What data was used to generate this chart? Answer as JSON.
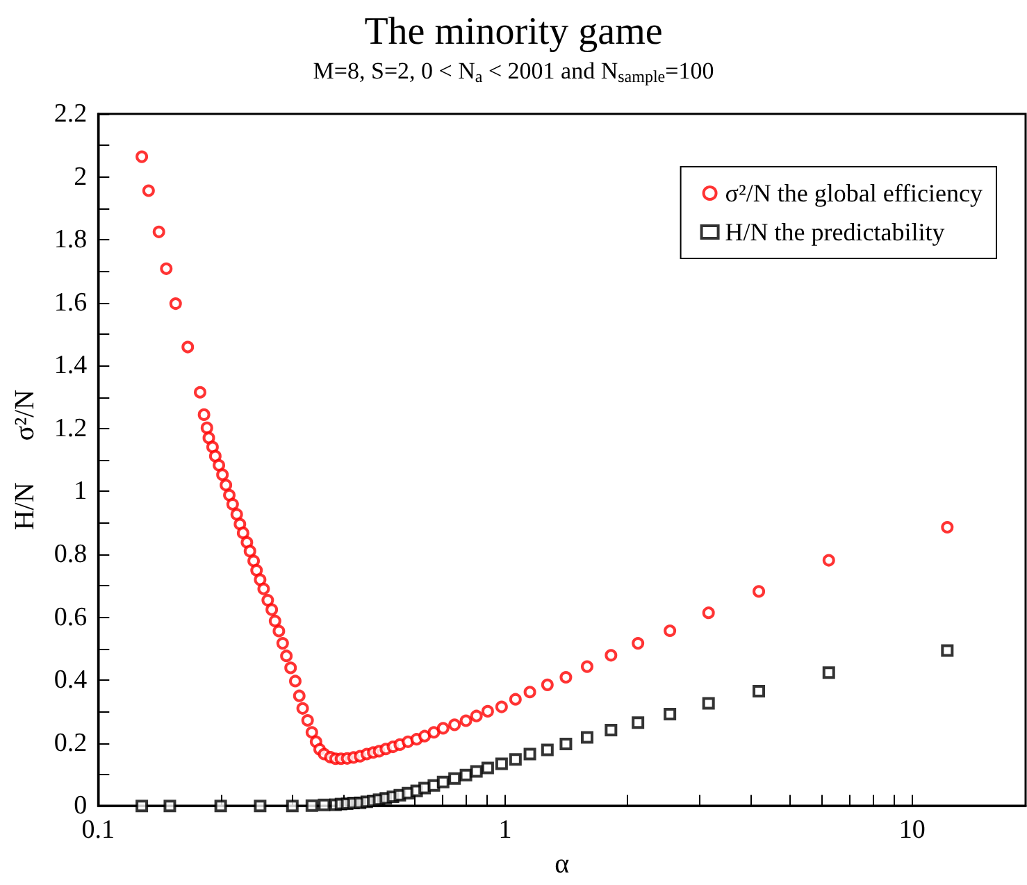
{
  "chart_data": {
    "type": "scatter",
    "title": "The minority game",
    "subtitle": "M=8, S=2, 0 < N$_{a}$ < 2001 and N$_{sample}$=100",
    "xlabel": "α",
    "ylabel": "H/N      σ²/N",
    "log": "x",
    "xlim": [
      0.1,
      19
    ],
    "xticks": [
      0.1,
      {
        "value": 0.2,
        "label": null
      },
      {
        "value": 0.3,
        "label": null
      },
      {
        "value": 0.4,
        "label": null
      },
      {
        "value": 0.5,
        "label": null
      },
      {
        "value": 0.6,
        "label": null
      },
      {
        "value": 0.7,
        "label": null
      },
      {
        "value": 0.8,
        "label": null
      },
      {
        "value": 0.9,
        "label": null
      },
      1,
      {
        "value": 2,
        "label": null
      },
      {
        "value": 3,
        "label": null
      },
      {
        "value": 4,
        "label": null
      },
      {
        "value": 5,
        "label": null
      },
      {
        "value": 6,
        "label": null
      },
      {
        "value": 7,
        "label": null
      },
      {
        "value": 8,
        "label": null
      },
      {
        "value": 9,
        "label": null
      },
      10
    ],
    "ylim": [
      0,
      2.2
    ],
    "yticks": [
      0,
      {
        "value": 0.1,
        "label": null
      },
      0.2,
      {
        "value": 0.3,
        "label": null
      },
      0.4,
      {
        "value": 0.5,
        "label": null
      },
      0.6,
      {
        "value": 0.7,
        "label": null
      },
      0.8,
      {
        "value": 0.9,
        "label": null
      },
      1,
      {
        "value": 1.1,
        "label": null
      },
      1.2,
      {
        "value": 1.3,
        "label": null
      },
      1.4,
      {
        "value": 1.5,
        "label": null
      },
      1.6,
      {
        "value": 1.7,
        "label": null
      },
      1.8,
      {
        "value": 1.9,
        "label": null
      },
      2,
      {
        "value": 2.1,
        "label": null
      },
      2.2
    ],
    "grid": false,
    "legend": "top right",
    "series": [
      {
        "name": "σ²/N the global efficiency",
        "color": "#ff0000",
        "marker": "circle",
        "x": [
          0.128,
          0.133,
          0.141,
          0.147,
          0.155,
          0.166,
          0.178,
          0.182,
          0.185,
          0.187,
          0.191,
          0.194,
          0.198,
          0.202,
          0.206,
          0.21,
          0.214,
          0.219,
          0.223,
          0.227,
          0.232,
          0.236,
          0.241,
          0.245,
          0.25,
          0.255,
          0.261,
          0.267,
          0.272,
          0.278,
          0.284,
          0.29,
          0.297,
          0.305,
          0.312,
          0.318,
          0.327,
          0.335,
          0.343,
          0.35,
          0.359,
          0.372,
          0.383,
          0.395,
          0.409,
          0.424,
          0.44,
          0.457,
          0.474,
          0.49,
          0.509,
          0.53,
          0.551,
          0.577,
          0.606,
          0.634,
          0.668,
          0.704,
          0.751,
          0.801,
          0.85,
          0.906,
          0.98,
          1.06,
          1.15,
          1.27,
          1.41,
          1.59,
          1.82,
          2.12,
          2.54,
          3.16,
          4.2,
          6.24,
          12.2
        ],
        "values": [
          2.064,
          1.956,
          1.825,
          1.708,
          1.597,
          1.459,
          1.315,
          1.244,
          1.202,
          1.17,
          1.141,
          1.112,
          1.083,
          1.053,
          1.02,
          0.988,
          0.959,
          0.927,
          0.896,
          0.868,
          0.838,
          0.81,
          0.779,
          0.749,
          0.719,
          0.69,
          0.654,
          0.624,
          0.588,
          0.556,
          0.517,
          0.477,
          0.439,
          0.397,
          0.35,
          0.31,
          0.272,
          0.234,
          0.204,
          0.18,
          0.165,
          0.155,
          0.15,
          0.15,
          0.151,
          0.154,
          0.158,
          0.165,
          0.17,
          0.174,
          0.181,
          0.188,
          0.195,
          0.204,
          0.212,
          0.222,
          0.234,
          0.247,
          0.258,
          0.271,
          0.286,
          0.301,
          0.315,
          0.339,
          0.362,
          0.385,
          0.409,
          0.443,
          0.479,
          0.517,
          0.557,
          0.614,
          0.682,
          0.781,
          0.886
        ]
      },
      {
        "name": "H/N the predictability",
        "color": "#000000",
        "marker": "square",
        "x": [
          0.128,
          0.15,
          0.2,
          0.25,
          0.3,
          0.335,
          0.359,
          0.383,
          0.395,
          0.409,
          0.424,
          0.44,
          0.457,
          0.474,
          0.49,
          0.509,
          0.53,
          0.551,
          0.577,
          0.606,
          0.634,
          0.668,
          0.704,
          0.751,
          0.801,
          0.85,
          0.906,
          0.98,
          1.06,
          1.15,
          1.27,
          1.41,
          1.59,
          1.82,
          2.12,
          2.54,
          3.16,
          4.2,
          6.24,
          12.2
        ],
        "values": [
          0,
          0,
          0,
          0,
          0,
          0.001,
          0.003,
          0.004,
          0.006,
          0.007,
          0.009,
          0.01,
          0.013,
          0.016,
          0.02,
          0.024,
          0.029,
          0.034,
          0.041,
          0.048,
          0.057,
          0.065,
          0.076,
          0.087,
          0.098,
          0.11,
          0.121,
          0.134,
          0.148,
          0.165,
          0.178,
          0.197,
          0.218,
          0.241,
          0.265,
          0.292,
          0.326,
          0.365,
          0.424,
          0.494
        ]
      }
    ]
  }
}
